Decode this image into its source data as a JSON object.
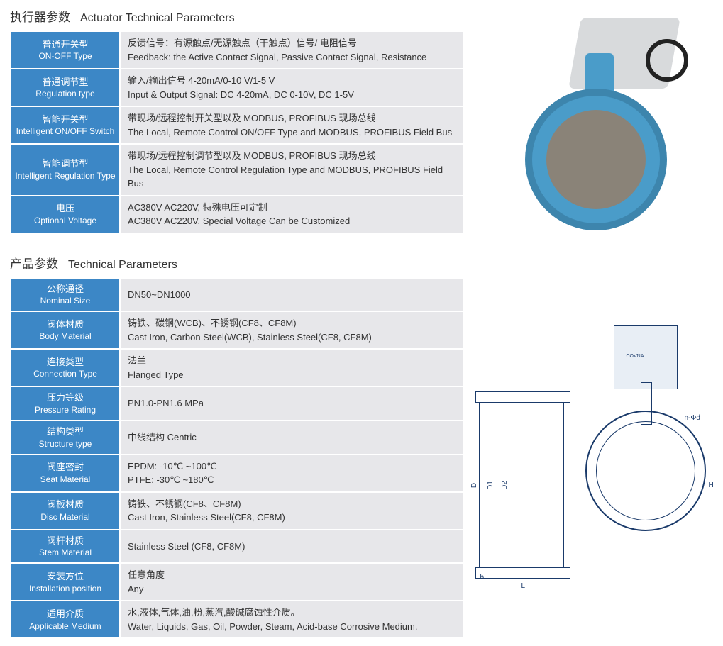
{
  "colors": {
    "header_blue": "#3c87c6",
    "row_gray": "#e7e7ea",
    "text": "#333333",
    "drawing_line": "#1a3a6a",
    "valve_blue": "#4a9cc9"
  },
  "section1": {
    "title_zh": "执行器参数",
    "title_en": "Actuator Technical Parameters",
    "rows": [
      {
        "label_zh": "普通开关型",
        "label_en": "ON-OFF Type",
        "value_zh": "反馈信号：有源触点/无源触点（干触点）信号/ 电阻信号",
        "value_en": "Feedback: the Active Contact Signal, Passive Contact Signal, Resistance"
      },
      {
        "label_zh": "普通调节型",
        "label_en": "Regulation type",
        "value_zh": "输入/输出信号 4-20mA/0-10 V/1-5 V",
        "value_en": "Input & Output Signal: DC 4-20mA, DC 0-10V, DC 1-5V"
      },
      {
        "label_zh": "智能开关型",
        "label_en": "Intelligent ON/OFF Switch",
        "value_zh": "带现场/远程控制开关型以及 MODBUS, PROFIBUS 现场总线",
        "value_en": "The Local, Remote Control ON/OFF Type and MODBUS, PROFIBUS Field Bus"
      },
      {
        "label_zh": "智能调节型",
        "label_en": "Intelligent Regulation Type",
        "value_zh": "带现场/远程控制调节型以及 MODBUS, PROFIBUS 现场总线",
        "value_en": "The Local, Remote Control Regulation Type and MODBUS, PROFIBUS Field Bus"
      },
      {
        "label_zh": "电压",
        "label_en": "Optional Voltage",
        "value_zh": "AC380V AC220V, 特殊电压可定制",
        "value_en": "AC380V AC220V, Special Voltage Can be Customized"
      }
    ]
  },
  "section2": {
    "title_zh": "产品参数",
    "title_en": "Technical Parameters",
    "rows": [
      {
        "label_zh": "公称通径",
        "label_en": "Nominal Size",
        "value_zh": "DN50~DN1000",
        "value_en": ""
      },
      {
        "label_zh": "阀体材质",
        "label_en": "Body Material",
        "value_zh": "铸铁、碳钢(WCB)、不锈钢(CF8、CF8M)",
        "value_en": "Cast Iron, Carbon Steel(WCB), Stainless Steel(CF8, CF8M)"
      },
      {
        "label_zh": "连接类型",
        "label_en": "Connection Type",
        "value_zh": "法兰",
        "value_en": "Flanged Type"
      },
      {
        "label_zh": "压力等级",
        "label_en": "Pressure Rating",
        "value_zh": " PN1.0-PN1.6 MPa",
        "value_en": ""
      },
      {
        "label_zh": "结构类型",
        "label_en": "Structure type",
        "value_zh": "中线结构  Centric",
        "value_en": ""
      },
      {
        "label_zh": "阀座密封",
        "label_en": "Seat Material",
        "value_zh": " EPDM: -10℃ ~100℃",
        "value_en": " PTFE: -30℃ ~180℃"
      },
      {
        "label_zh": "阀板材质",
        "label_en": "Disc Material",
        "value_zh": "铸铁、不锈钢(CF8、CF8M)",
        "value_en": "Cast Iron, Stainless Steel(CF8, CF8M)"
      },
      {
        "label_zh": "阀杆材质",
        "label_en": "Stem Material",
        "value_zh": "  Stainless Steel (CF8, CF8M)",
        "value_en": ""
      },
      {
        "label_zh": "安装方位",
        "label_en": "Installation position",
        "value_zh": "任意角度",
        "value_en": "Any"
      },
      {
        "label_zh": "适用介质",
        "label_en": "Applicable Medium",
        "value_zh": "水,液体,气体,油,粉,蒸汽,酸碱腐蚀性介质。",
        "value_en": "Water, Liquids, Gas, Oil, Powder, Steam, Acid-base Corrosive Medium."
      }
    ]
  },
  "drawing_labels": {
    "D": "D",
    "D1": "D1",
    "D2": "D2",
    "L": "L",
    "b": "b",
    "H": "H",
    "nphid": "n-Φd",
    "brand": "COVNA"
  }
}
